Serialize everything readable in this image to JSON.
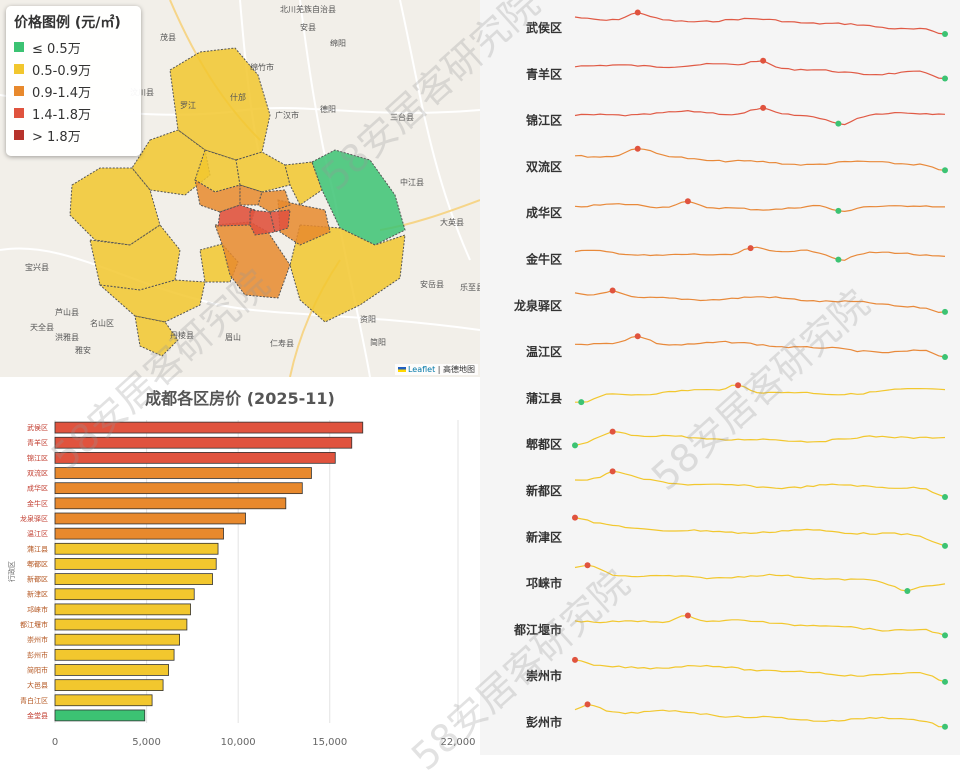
{
  "map": {
    "legend": {
      "title": "价格图例 (元/㎡)",
      "items": [
        {
          "label": "≤ 0.5万",
          "color": "#3cc373"
        },
        {
          "label": "0.5-0.9万",
          "color": "#f2c72e"
        },
        {
          "label": "0.9-1.4万",
          "color": "#e8892d"
        },
        {
          "label": "1.4-1.8万",
          "color": "#e0533e"
        },
        {
          "label": "> 1.8万",
          "color": "#b7332c"
        }
      ]
    },
    "attribution": {
      "leaflet": "Leaflet",
      "sep": " | ",
      "provider": "高德地图"
    },
    "places": [
      "北川羌族自治县",
      "安县",
      "绵阳",
      "绵竹市",
      "德阳",
      "广汉市",
      "三台县",
      "中江县",
      "大英县",
      "乐至县",
      "安岳县",
      "资阳",
      "简阳",
      "眉山",
      "仁寿县",
      "丹棱县",
      "洪雅县",
      "雅安",
      "芦山县",
      "名山区",
      "天全县",
      "宝兴县",
      "汶川县",
      "茂县",
      "什邡",
      "罗江"
    ]
  },
  "bars": {
    "chart_data": {
      "type": "bar",
      "orientation": "horizontal",
      "title": "成都各区房价 (2025-11)",
      "ylabel": "行政区",
      "xlabel": "",
      "xlim": [
        0,
        22000
      ],
      "xticks": [
        "0",
        "5,000",
        "10,000",
        "15,000",
        "22,000"
      ],
      "xtick_values": [
        0,
        5000,
        10000,
        15000,
        22000
      ],
      "categories": [
        "武侯区",
        "青羊区",
        "锦江区",
        "双流区",
        "成华区",
        "金牛区",
        "龙泉驿区",
        "温江区",
        "蒲江县",
        "郫都区",
        "新都区",
        "新津区",
        "邛崃市",
        "都江堰市",
        "崇州市",
        "彭州市",
        "简阳市",
        "大邑县",
        "青白江区",
        "金堂县"
      ],
      "values": [
        16800,
        16200,
        15300,
        14000,
        13500,
        12600,
        10400,
        9200,
        8900,
        8800,
        8600,
        7600,
        7400,
        7200,
        6800,
        6500,
        6200,
        5900,
        5300,
        4900
      ],
      "colors": [
        "#e0533e",
        "#e0533e",
        "#e0533e",
        "#e8892d",
        "#e8892d",
        "#e8892d",
        "#e8892d",
        "#e8892d",
        "#f2c72e",
        "#f2c72e",
        "#f2c72e",
        "#f2c72e",
        "#f2c72e",
        "#f2c72e",
        "#f2c72e",
        "#f2c72e",
        "#f2c72e",
        "#f2c72e",
        "#f2c72e",
        "#3cc373"
      ]
    }
  },
  "sparklines": {
    "chart_data": {
      "type": "line",
      "districts": [
        {
          "name": "武侯区",
          "color": "#e05a45",
          "max_at": 0.17,
          "min_at": 1.0,
          "trend": "down"
        },
        {
          "name": "青羊区",
          "color": "#e05a45",
          "max_at": 0.5,
          "min_at": 1.0,
          "trend": "down"
        },
        {
          "name": "锦江区",
          "color": "#e05a45",
          "max_at": 0.5,
          "min_at": 0.72,
          "trend": "flat"
        },
        {
          "name": "双流区",
          "color": "#e8893a",
          "max_at": 0.17,
          "min_at": 1.0,
          "trend": "down"
        },
        {
          "name": "成华区",
          "color": "#e8893a",
          "max_at": 0.3,
          "min_at": 0.72,
          "trend": "flat"
        },
        {
          "name": "金牛区",
          "color": "#e8893a",
          "max_at": 0.48,
          "min_at": 0.72,
          "trend": "flat"
        },
        {
          "name": "龙泉驿区",
          "color": "#e8893a",
          "max_at": 0.1,
          "min_at": 1.0,
          "trend": "down"
        },
        {
          "name": "温江区",
          "color": "#e8893a",
          "max_at": 0.17,
          "min_at": 1.0,
          "trend": "down"
        },
        {
          "name": "蒲江县",
          "color": "#f2c72e",
          "max_at": 0.44,
          "min_at": 0.02,
          "trend": "up"
        },
        {
          "name": "郫都区",
          "color": "#f2c72e",
          "max_at": 0.11,
          "min_at": 0.0,
          "trend": "flat"
        },
        {
          "name": "新都区",
          "color": "#f2c72e",
          "max_at": 0.11,
          "min_at": 1.0,
          "trend": "down"
        },
        {
          "name": "新津区",
          "color": "#f2c72e",
          "max_at": 0.0,
          "min_at": 1.0,
          "trend": "down"
        },
        {
          "name": "邛崃市",
          "color": "#f2c72e",
          "max_at": 0.04,
          "min_at": 0.89,
          "trend": "down"
        },
        {
          "name": "都江堰市",
          "color": "#f2c72e",
          "max_at": 0.3,
          "min_at": 1.0,
          "trend": "down"
        },
        {
          "name": "崇州市",
          "color": "#f2c72e",
          "max_at": 0.0,
          "min_at": 1.0,
          "trend": "down"
        },
        {
          "name": "彭州市",
          "color": "#f2c72e",
          "max_at": 0.04,
          "min_at": 1.0,
          "trend": "down"
        }
      ]
    }
  },
  "watermark": "58安居客研究院"
}
